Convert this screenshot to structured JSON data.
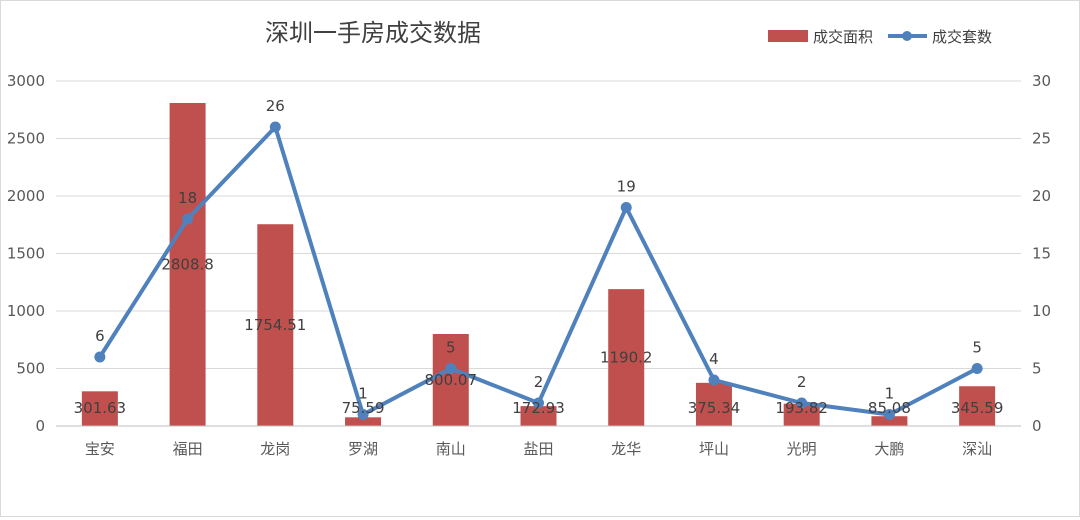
{
  "chart_data": {
    "type": "bar",
    "title": "深圳一手房成交数据",
    "categories": [
      "宝安",
      "福田",
      "龙岗",
      "罗湖",
      "南山",
      "盐田",
      "龙华",
      "坪山",
      "光明",
      "大鹏",
      "深汕"
    ],
    "series": [
      {
        "name": "成交面积",
        "type": "bar",
        "axis": "left",
        "color": "#c0504d",
        "values": [
          301.63,
          2808.8,
          1754.51,
          75.59,
          800.07,
          172.93,
          1190.2,
          375.34,
          193.82,
          85.08,
          345.59
        ],
        "labels": [
          "301.63",
          "2808.8",
          "1754.51",
          "75.59",
          "800.07",
          "172.93",
          "1190.2",
          "375.34",
          "193.82",
          "85.08",
          "345.59"
        ]
      },
      {
        "name": "成交套数",
        "type": "line",
        "axis": "right",
        "color": "#4f81bd",
        "values": [
          6,
          18,
          26,
          1,
          5,
          2,
          19,
          4,
          2,
          1,
          5
        ],
        "labels": [
          "6",
          "18",
          "26",
          "1",
          "5",
          "2",
          "19",
          "4",
          "2",
          "1",
          "5"
        ]
      }
    ],
    "y_left": {
      "ylim": [
        0,
        3000
      ],
      "ticks": [
        "0",
        "500",
        "1000",
        "1500",
        "2000",
        "2500",
        "3000"
      ]
    },
    "y_right": {
      "ylim": [
        0,
        30
      ],
      "ticks": [
        "0",
        "5",
        "10",
        "15",
        "20",
        "25",
        "30"
      ]
    },
    "grid": true,
    "legend_position": "top-right"
  }
}
